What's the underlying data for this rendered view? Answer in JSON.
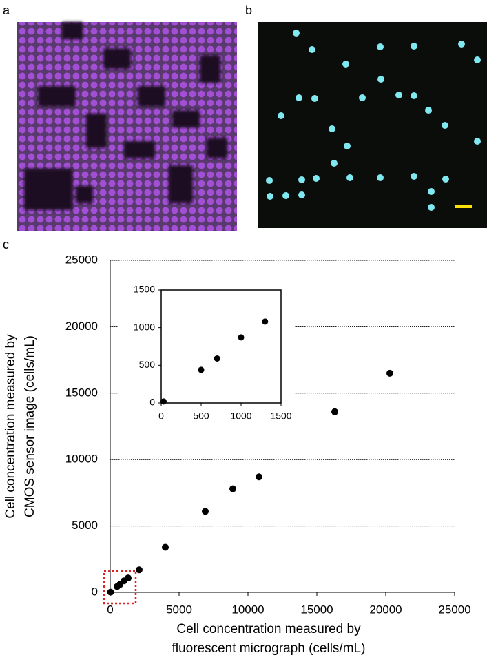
{
  "panel_labels": [
    "a",
    "b",
    "c"
  ],
  "chart_data": [
    {
      "type": "scatter",
      "xlabel": [
        "Cell concentration measured by",
        "fluorescent micrograph (cells/mL)"
      ],
      "ylabel": [
        "Cell concentration measured by",
        "CMOS sensor image (cells/mL)"
      ],
      "x": [
        30,
        500,
        700,
        1000,
        1300,
        2100,
        4000,
        6900,
        8900,
        10800,
        16300,
        20300
      ],
      "y": [
        20,
        440,
        590,
        870,
        1080,
        1700,
        3400,
        6100,
        7800,
        8700,
        13600,
        16500
      ],
      "color": "#000000",
      "xlim": [
        0,
        25000
      ],
      "ylim": [
        0,
        25000
      ],
      "xticks": [
        0,
        5000,
        10000,
        15000,
        20000,
        25000
      ],
      "yticks": [
        0,
        5000,
        10000,
        15000,
        20000,
        25000
      ],
      "grid": "y"
    },
    {
      "type": "scatter",
      "x": [
        30,
        500,
        700,
        1000,
        1300
      ],
      "y": [
        20,
        440,
        590,
        870,
        1080
      ],
      "color": "#000000",
      "xlim": [
        0,
        1500
      ],
      "ylim": [
        0,
        1500
      ],
      "xticks": [
        0,
        500,
        1000,
        1500
      ],
      "yticks": [
        0,
        500,
        1000,
        1500
      ]
    }
  ]
}
